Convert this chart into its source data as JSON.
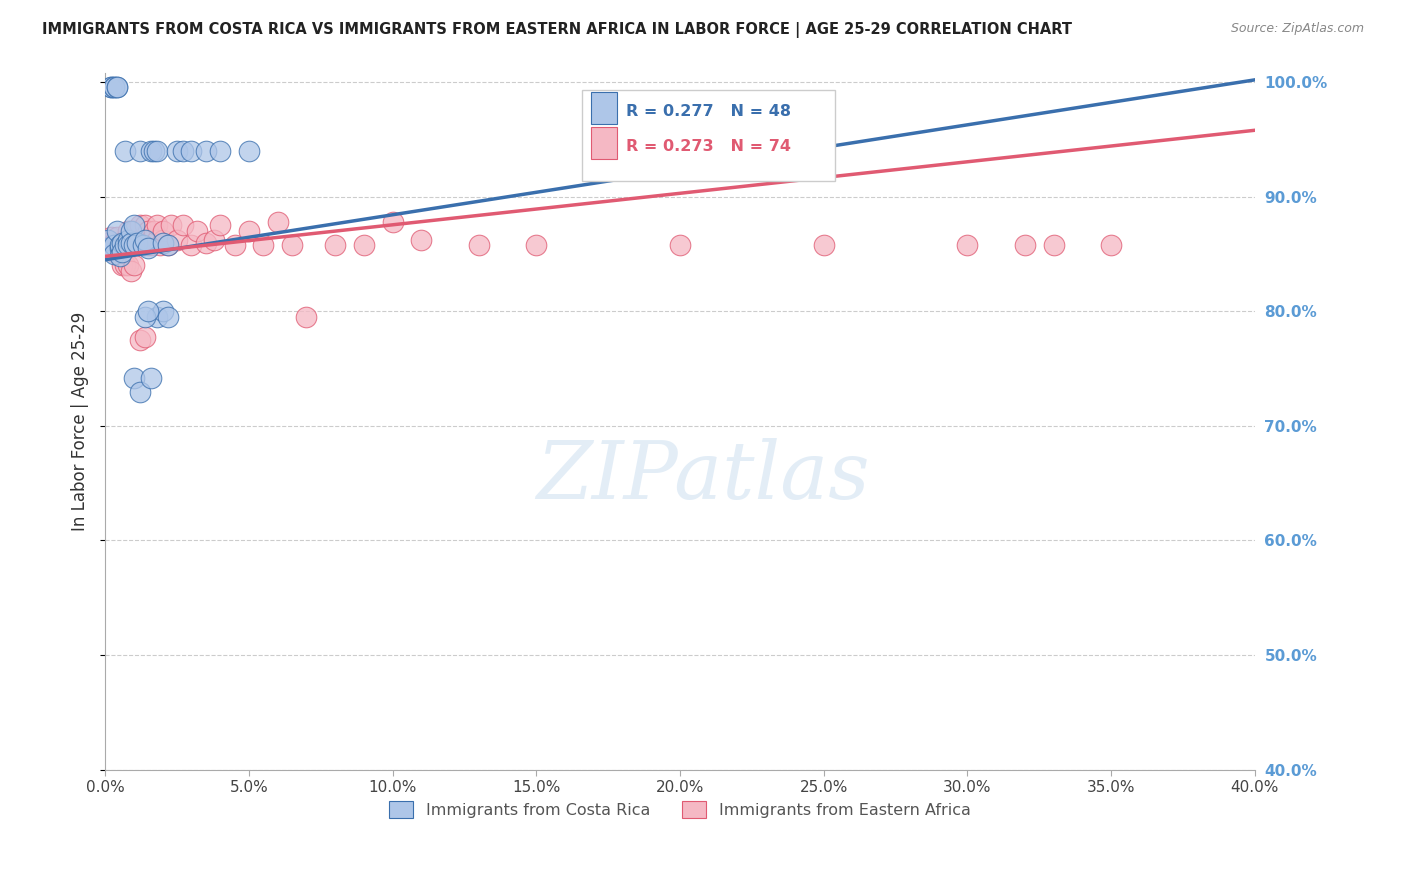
{
  "title": "IMMIGRANTS FROM COSTA RICA VS IMMIGRANTS FROM EASTERN AFRICA IN LABOR FORCE | AGE 25-29 CORRELATION CHART",
  "source": "Source: ZipAtlas.com",
  "ylabel": "In Labor Force | Age 25-29",
  "watermark": "ZIPatlas",
  "legend1_label": "Immigrants from Costa Rica",
  "legend2_label": "Immigrants from Eastern Africa",
  "R1": 0.277,
  "N1": 48,
  "R2": 0.273,
  "N2": 74,
  "color1": "#aec6e8",
  "color2": "#f5b8c4",
  "line1_color": "#3a6fad",
  "line2_color": "#e05a72",
  "xmin": 0.0,
  "xmax": 0.4,
  "ymin": 0.4,
  "ymax": 1.008,
  "yticks": [
    0.4,
    0.5,
    0.6,
    0.7,
    0.8,
    0.9,
    1.0
  ],
  "xticks": [
    0.0,
    0.05,
    0.1,
    0.15,
    0.2,
    0.25,
    0.3,
    0.35,
    0.4
  ],
  "blue_x": [
    0.001,
    0.001,
    0.002,
    0.002,
    0.003,
    0.003,
    0.003,
    0.003,
    0.004,
    0.004,
    0.004,
    0.005,
    0.005,
    0.005,
    0.006,
    0.006,
    0.007,
    0.007,
    0.008,
    0.008,
    0.009,
    0.009,
    0.01,
    0.01,
    0.011,
    0.012,
    0.013,
    0.014,
    0.015,
    0.016,
    0.017,
    0.018,
    0.02,
    0.022,
    0.025,
    0.027,
    0.03,
    0.035,
    0.04,
    0.05,
    0.018,
    0.02,
    0.022,
    0.01,
    0.012,
    0.014,
    0.015,
    0.016
  ],
  "blue_y": [
    0.855,
    0.862,
    0.996,
    0.996,
    0.996,
    0.996,
    0.858,
    0.85,
    0.996,
    0.996,
    0.87,
    0.855,
    0.858,
    0.848,
    0.86,
    0.852,
    0.94,
    0.858,
    0.862,
    0.858,
    0.87,
    0.86,
    0.875,
    0.858,
    0.86,
    0.94,
    0.858,
    0.862,
    0.855,
    0.94,
    0.94,
    0.94,
    0.86,
    0.858,
    0.94,
    0.94,
    0.94,
    0.94,
    0.94,
    0.94,
    0.795,
    0.8,
    0.795,
    0.742,
    0.73,
    0.795,
    0.8,
    0.742
  ],
  "pink_x": [
    0.001,
    0.001,
    0.002,
    0.002,
    0.003,
    0.003,
    0.003,
    0.004,
    0.004,
    0.005,
    0.005,
    0.005,
    0.006,
    0.006,
    0.007,
    0.007,
    0.008,
    0.008,
    0.009,
    0.009,
    0.01,
    0.01,
    0.011,
    0.011,
    0.012,
    0.012,
    0.013,
    0.013,
    0.014,
    0.014,
    0.015,
    0.015,
    0.016,
    0.016,
    0.017,
    0.018,
    0.018,
    0.019,
    0.02,
    0.02,
    0.022,
    0.023,
    0.025,
    0.027,
    0.03,
    0.032,
    0.035,
    0.038,
    0.04,
    0.045,
    0.05,
    0.055,
    0.06,
    0.065,
    0.07,
    0.08,
    0.09,
    0.1,
    0.11,
    0.13,
    0.15,
    0.2,
    0.25,
    0.3,
    0.32,
    0.33,
    0.35,
    0.006,
    0.007,
    0.008,
    0.009,
    0.01,
    0.012,
    0.014
  ],
  "pink_y": [
    0.855,
    0.86,
    0.858,
    0.865,
    0.855,
    0.86,
    0.852,
    0.858,
    0.865,
    0.855,
    0.86,
    0.852,
    0.86,
    0.858,
    0.862,
    0.858,
    0.87,
    0.858,
    0.862,
    0.858,
    0.858,
    0.87,
    0.862,
    0.858,
    0.875,
    0.862,
    0.865,
    0.858,
    0.862,
    0.875,
    0.858,
    0.87,
    0.862,
    0.858,
    0.87,
    0.862,
    0.875,
    0.858,
    0.862,
    0.87,
    0.858,
    0.875,
    0.862,
    0.875,
    0.858,
    0.87,
    0.86,
    0.862,
    0.875,
    0.858,
    0.87,
    0.858,
    0.878,
    0.858,
    0.795,
    0.858,
    0.858,
    0.878,
    0.862,
    0.858,
    0.858,
    0.858,
    0.858,
    0.858,
    0.858,
    0.858,
    0.858,
    0.84,
    0.84,
    0.84,
    0.835,
    0.84,
    0.775,
    0.778
  ],
  "line1_x0": 0.0,
  "line1_x1": 0.4,
  "line1_y0": 0.845,
  "line1_y1": 1.002,
  "line2_x0": 0.0,
  "line2_x1": 0.4,
  "line2_y0": 0.848,
  "line2_y1": 0.958
}
